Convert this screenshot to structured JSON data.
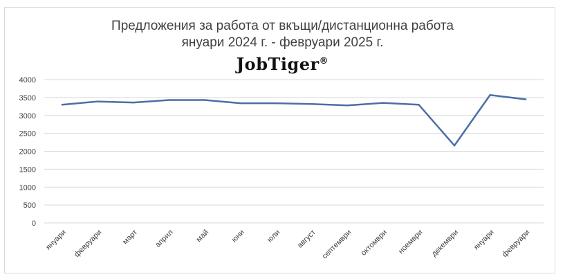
{
  "chart": {
    "title_line1": "Предложения за работа от вкъщи/дистанционна работа",
    "title_line2": "януари 2024 г. - февруари 2025 г.",
    "logo_text": "JobTiger®"
  },
  "chart_data": {
    "type": "line",
    "categories": [
      "януари",
      "февруари",
      "март",
      "април",
      "май",
      "юни",
      "юли",
      "август",
      "септември",
      "октомври",
      "ноември",
      "декември",
      "януари",
      "февруари"
    ],
    "series": [
      {
        "values": [
          3300,
          3390,
          3360,
          3430,
          3430,
          3340,
          3340,
          3320,
          3280,
          3350,
          3300,
          2160,
          3570,
          3450
        ]
      }
    ],
    "yticks": [
      0,
      500,
      1000,
      1500,
      2000,
      2500,
      3000,
      3500,
      4000
    ],
    "ylim": [
      0,
      4000
    ],
    "grid": true,
    "legend": "none",
    "colors": {
      "line": "#4a6fa5",
      "grid": "#d9d9d9",
      "text": "#404040"
    }
  }
}
